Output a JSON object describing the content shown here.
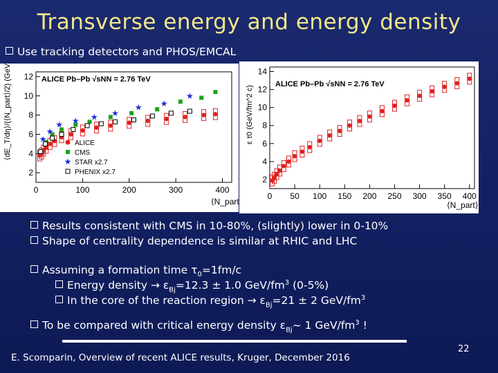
{
  "slide": {
    "title": "Transverse energy and energy density",
    "bullet_top": "Use tracking detectors and PHOS/EMCAL",
    "bullets_mid": [
      "Results consistent with CMS in 10-80%, (slightly) lower in 0-10%",
      "Shape of centrality dependence is similar at RHIC and LHC"
    ],
    "assume": {
      "text": "Assuming a formation time ",
      "tau": "τ",
      "tau_sub": "0",
      "tau_val": "=1fm/c"
    },
    "sub1": {
      "text": "Energy density ",
      "arrow": "→ ",
      "eps": "ε",
      "eps_sub": "Bj",
      "val": "=12.3 ± 1.0 GeV/fm",
      "sup": "3",
      "tail": " (0-5%)"
    },
    "sub2": {
      "text": "In the core of the reaction region ",
      "arrow": "→ ",
      "eps": "ε",
      "eps_sub": "Bj",
      "val": "=21 ± 2 GeV/fm",
      "sup": "3"
    },
    "compare": {
      "text": "To be compared with critical energy density ",
      "eps": "ε",
      "eps_sub": "Bj",
      "val": "~ 1 GeV/fm",
      "sup": "3",
      "tail": " !"
    },
    "footer": "E. Scomparin, Overview of recent ALICE results, Kruger, December 2016",
    "page_number": "22"
  },
  "colors": {
    "title": "#f4e88a",
    "alice": "#e02020",
    "cms": "#1aa31a",
    "star": "#1a2adc",
    "phenix": "#000000"
  },
  "chart_data": [
    {
      "type": "scatter",
      "title": "ALICE Pb–Pb √sNN = 2.76 TeV",
      "xlabel": "⟨N_part⟩",
      "ylabel": "⟨dE_T/dη⟩/(⟨N_part⟩/2) (GeV)",
      "xlim": [
        0,
        420
      ],
      "ylim": [
        1,
        12.5
      ],
      "xticks": [
        "0",
        "100",
        "200",
        "300",
        "400"
      ],
      "yticks": [
        "2",
        "4",
        "6",
        "8",
        "10",
        "12"
      ],
      "legend": [
        "ALICE",
        "CMS",
        "STAR x2.7",
        "PHENIX x2.7"
      ],
      "series": [
        {
          "name": "ALICE",
          "x": [
            8,
            12,
            16,
            22,
            30,
            40,
            55,
            75,
            100,
            130,
            160,
            200,
            240,
            280,
            320,
            360,
            385
          ],
          "y": [
            3.8,
            4.0,
            4.3,
            4.6,
            5.0,
            5.3,
            5.7,
            6.0,
            6.4,
            6.7,
            6.9,
            7.2,
            7.4,
            7.6,
            7.8,
            8.0,
            8.1
          ]
        },
        {
          "name": "CMS",
          "x": [
            22,
            35,
            55,
            85,
            115,
            160,
            205,
            260,
            310,
            355,
            385
          ],
          "y": [
            5.2,
            6.0,
            6.5,
            7.0,
            7.3,
            7.8,
            8.2,
            8.6,
            9.4,
            9.8,
            10.4
          ]
        },
        {
          "name": "STAR x2.7",
          "x": [
            15,
            30,
            50,
            85,
            125,
            170,
            220,
            275,
            330
          ],
          "y": [
            5.5,
            6.3,
            7.0,
            7.4,
            7.8,
            8.2,
            8.8,
            9.2,
            10.0
          ]
        },
        {
          "name": "PHENIX x2.7",
          "x": [
            10,
            20,
            35,
            55,
            80,
            110,
            140,
            170,
            210,
            250,
            290,
            330
          ],
          "y": [
            4.2,
            5.0,
            5.6,
            6.0,
            6.5,
            6.9,
            7.1,
            7.3,
            7.5,
            7.9,
            8.2,
            8.4
          ]
        }
      ]
    },
    {
      "type": "scatter",
      "title": "ALICE Pb–Pb √sNN = 2.76 TeV",
      "xlabel": "⟨N_part⟩",
      "ylabel": "ε τ0 (GeV/fm^2 c)",
      "xlim": [
        0,
        410
      ],
      "ylim": [
        1,
        14.5
      ],
      "xticks": [
        "0",
        "50",
        "100",
        "150",
        "200",
        "250",
        "300",
        "350",
        "400"
      ],
      "yticks": [
        "2",
        "4",
        "6",
        "8",
        "10",
        "12",
        "14"
      ],
      "series": [
        {
          "name": "ALICE",
          "x": [
            5,
            9,
            14,
            20,
            28,
            38,
            50,
            65,
            80,
            100,
            120,
            140,
            160,
            180,
            200,
            225,
            250,
            275,
            300,
            325,
            350,
            375,
            400
          ],
          "y": [
            1.9,
            2.2,
            2.6,
            3.0,
            3.5,
            4.0,
            4.6,
            5.1,
            5.6,
            6.3,
            6.9,
            7.4,
            8.0,
            8.5,
            9.0,
            9.6,
            10.2,
            10.8,
            11.3,
            11.8,
            12.3,
            12.7,
            13.2
          ]
        }
      ]
    }
  ]
}
